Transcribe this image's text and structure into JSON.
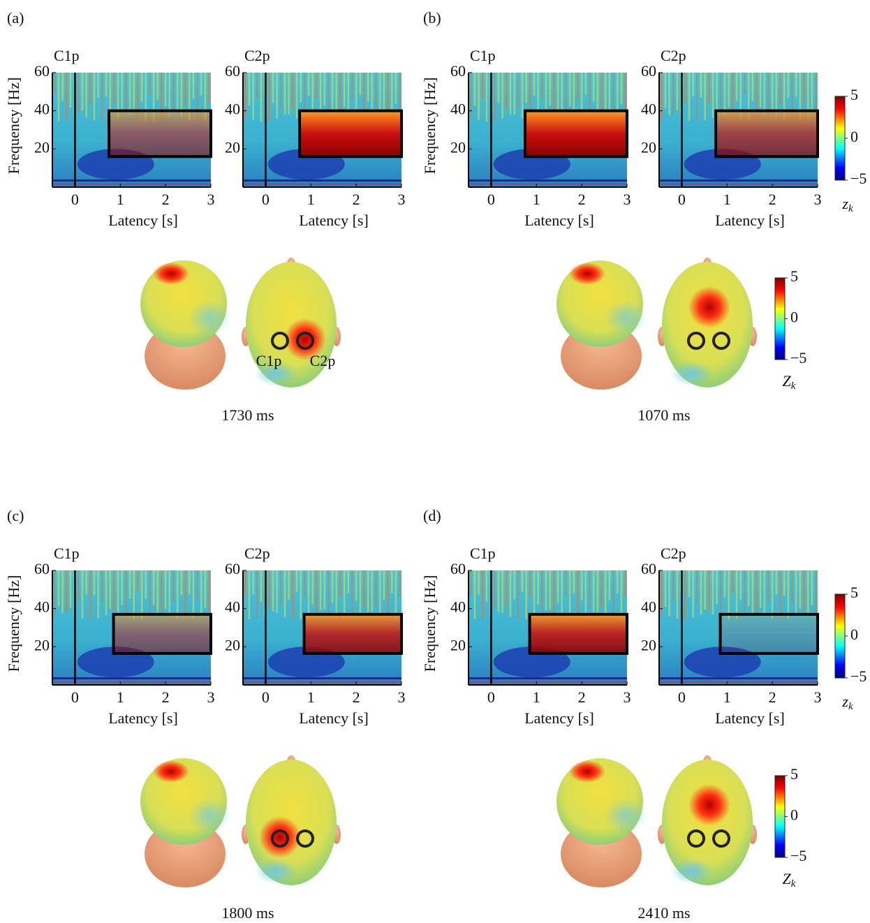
{
  "axes": {
    "xlabel": "Latency [s]",
    "ylabel": "Frequency [Hz]",
    "xlim": [
      -0.5,
      3
    ],
    "ylim": [
      0,
      60
    ],
    "xticks": [
      0,
      1,
      2,
      3
    ],
    "yticks": [
      20,
      40,
      60
    ]
  },
  "colorbar": {
    "lim": [
      -5,
      5
    ],
    "ticks": [
      5,
      0,
      {
        "value": -5,
        "label": "−5"
      }
    ]
  },
  "tf_scale_label": {
    "base": "z",
    "sub": "k"
  },
  "topo_scale_label": {
    "base": "Z",
    "sub": "k"
  },
  "panels": [
    {
      "label": "(a)",
      "time": "1730 ms",
      "electrodes": [
        "C1p",
        "C2p"
      ],
      "plots": [
        {
          "channel": "C1p",
          "window": {
            "latency": [
              0.75,
              3
            ],
            "frequency": [
              16,
              40
            ]
          }
        },
        {
          "channel": "C2p",
          "window": {
            "latency": [
              0.75,
              3
            ],
            "frequency": [
              16,
              40
            ]
          }
        }
      ]
    },
    {
      "label": "(b)",
      "time": "1070 ms",
      "plots": [
        {
          "channel": "C1p",
          "window": {
            "latency": [
              0.75,
              3
            ],
            "frequency": [
              16,
              40
            ]
          }
        },
        {
          "channel": "C2p",
          "window": {
            "latency": [
              0.75,
              3
            ],
            "frequency": [
              16,
              40
            ]
          }
        }
      ]
    },
    {
      "label": "(c)",
      "time": "1800 ms",
      "plots": [
        {
          "channel": "C1p",
          "window": {
            "latency": [
              0.85,
              3
            ],
            "frequency": [
              16.5,
              37
            ]
          }
        },
        {
          "channel": "C2p",
          "window": {
            "latency": [
              0.85,
              3
            ],
            "frequency": [
              16.5,
              37
            ]
          }
        }
      ]
    },
    {
      "label": "(d)",
      "time": "2410 ms",
      "plots": [
        {
          "channel": "C1p",
          "window": {
            "latency": [
              0.85,
              3
            ],
            "frequency": [
              16.5,
              37
            ]
          }
        },
        {
          "channel": "C2p",
          "window": {
            "latency": [
              0.85,
              3
            ],
            "frequency": [
              16.5,
              37
            ]
          }
        }
      ]
    }
  ]
}
